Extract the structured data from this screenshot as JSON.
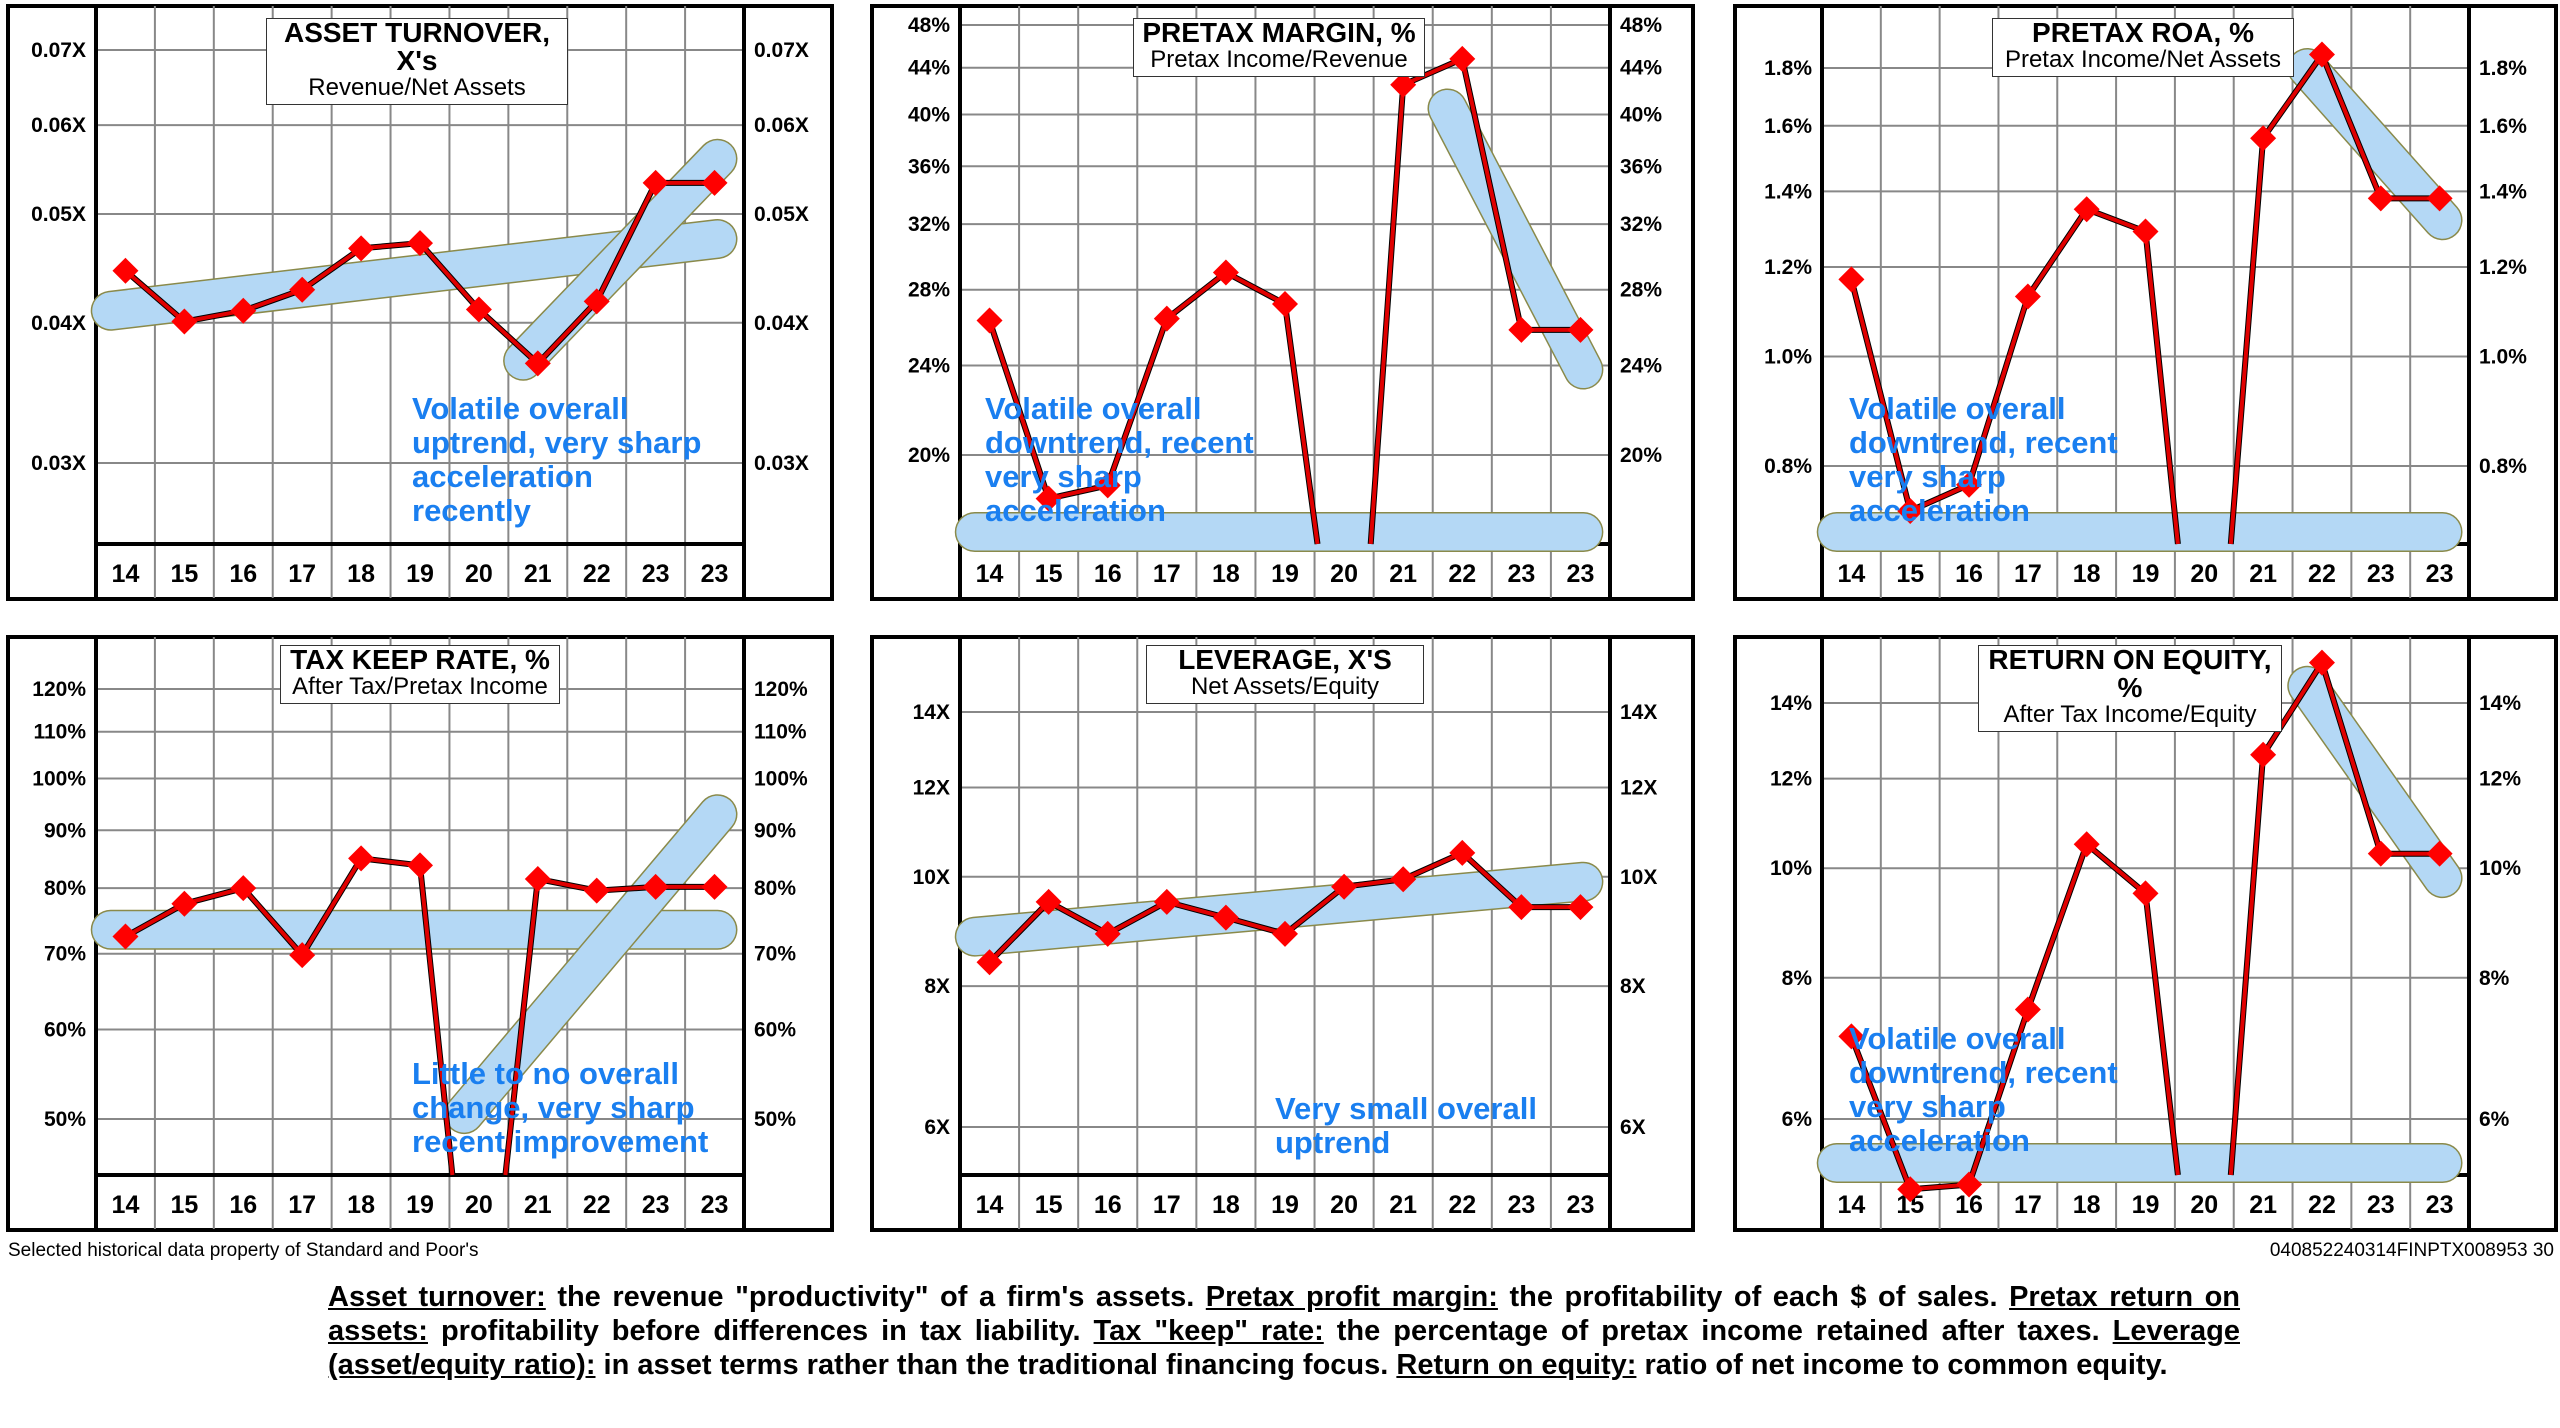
{
  "chart_data": [
    {
      "type": "line",
      "title": "ASSET TURNOVER, X's",
      "subtitle": "Revenue/Net Assets",
      "x": [
        "14",
        "15",
        "16",
        "17",
        "18",
        "19",
        "20",
        "21",
        "22",
        "23",
        "23"
      ],
      "values": [
        0.0445,
        0.0401,
        0.041,
        0.0428,
        0.0466,
        0.0471,
        0.0411,
        0.0368,
        0.0418,
        0.0533,
        0.0533
      ],
      "yticks": [
        "0.07X",
        "0.06X",
        "0.05X",
        "0.04X",
        "0.03X"
      ],
      "ytick_values": [
        0.07,
        0.06,
        0.05,
        0.04,
        0.03
      ],
      "yscale": "log",
      "trend_bands": [
        {
          "x_from": "14",
          "x_to": "23",
          "y_from": 0.041,
          "y_to": 0.0475
        },
        {
          "x_from": "21",
          "x_to": "23",
          "y_from": 0.037,
          "y_to": 0.056
        }
      ],
      "annotation": "Volatile overall\nuptrend, very sharp\nacceleration\nrecently"
    },
    {
      "type": "line",
      "title": "PRETAX MARGIN, %",
      "subtitle": "Pretax Income/Revenue",
      "x": [
        "14",
        "15",
        "16",
        "17",
        "18",
        "19",
        "20",
        "21",
        "22",
        "23",
        "23"
      ],
      "values": [
        26.3,
        18.3,
        18.8,
        26.4,
        29.0,
        27.2,
        null,
        42.5,
        44.8,
        25.8,
        25.8
      ],
      "offscale_below": [
        "20"
      ],
      "yticks": [
        "48%",
        "44%",
        "40%",
        "36%",
        "32%",
        "28%",
        "24%",
        "20%"
      ],
      "ytick_values": [
        48,
        44,
        40,
        36,
        32,
        28,
        24,
        20
      ],
      "yscale": "log",
      "trend_bands": [
        {
          "x_from": "14",
          "x_to": "23",
          "y_from": "bottom",
          "y_to": "bottom"
        },
        {
          "x_from": "22",
          "x_to": "23",
          "y_from": 40.5,
          "y_to": 23.8
        }
      ],
      "annotation": "Volatile overall\ndowntrend, recent\nvery sharp\nacceleration"
    },
    {
      "type": "line",
      "title": "PRETAX ROA, %",
      "subtitle": "Pretax Income/Net Assets",
      "x": [
        "14",
        "15",
        "16",
        "17",
        "18",
        "19",
        "20",
        "21",
        "22",
        "23",
        "23"
      ],
      "values": [
        1.17,
        0.73,
        0.77,
        1.13,
        1.35,
        1.29,
        null,
        1.56,
        1.85,
        1.38,
        1.38
      ],
      "offscale_below": [
        "20"
      ],
      "yticks": [
        "1.8%",
        "1.6%",
        "1.4%",
        "1.2%",
        "1.0%",
        "0.8%"
      ],
      "ytick_values": [
        1.8,
        1.6,
        1.4,
        1.2,
        1.0,
        0.8
      ],
      "yscale": "log",
      "trend_bands": [
        {
          "x_from": "14",
          "x_to": "23",
          "y_from": "bottom",
          "y_to": "bottom"
        },
        {
          "x_from": "22",
          "x_to": "23",
          "y_from": 1.8,
          "y_to": 1.32
        }
      ],
      "annotation": "Volatile overall\ndowntrend, recent\nvery sharp\nacceleration"
    },
    {
      "type": "line",
      "title": "TAX KEEP RATE, %",
      "subtitle": "After Tax/Pretax Income",
      "x": [
        "14",
        "15",
        "16",
        "17",
        "18",
        "19",
        "20",
        "21",
        "22",
        "23",
        "23"
      ],
      "values": [
        72.5,
        77.5,
        80.0,
        69.8,
        85.0,
        83.8,
        null,
        81.5,
        79.6,
        80.2,
        80.2
      ],
      "offscale_below": [
        "20"
      ],
      "yticks": [
        "120%",
        "110%",
        "100%",
        "90%",
        "80%",
        "70%",
        "60%",
        "50%"
      ],
      "ytick_values": [
        120,
        110,
        100,
        90,
        80,
        70,
        60,
        50
      ],
      "yscale": "log",
      "trend_bands": [
        {
          "x_from": "14",
          "x_to": "23",
          "y_from": 73.5,
          "y_to": 73.5
        },
        {
          "x_from": "20",
          "x_to": "23",
          "y_from": 50.5,
          "y_to": 93
        }
      ],
      "annotation": "Little to no overall\nchange, very sharp\nrecent improvement"
    },
    {
      "type": "line",
      "title": "LEVERAGE, X'S",
      "subtitle": "Net Assets/Equity",
      "x": [
        "14",
        "15",
        "16",
        "17",
        "18",
        "19",
        "20",
        "21",
        "22",
        "23",
        "23"
      ],
      "values": [
        8.4,
        9.5,
        8.9,
        9.5,
        9.2,
        8.9,
        9.8,
        9.95,
        10.5,
        9.4,
        9.4
      ],
      "yticks": [
        "14X",
        "12X",
        "10X",
        "8X",
        "6X"
      ],
      "ytick_values": [
        14,
        12,
        10,
        8,
        6
      ],
      "yscale": "log",
      "trend_bands": [
        {
          "x_from": "14",
          "x_to": "23",
          "y_from": 8.85,
          "y_to": 9.9
        }
      ],
      "annotation": "Very small overall\nuptrend"
    },
    {
      "type": "line",
      "title": "RETURN ON EQUITY, %",
      "subtitle": "After Tax Income/Equity",
      "x": [
        "14",
        "15",
        "16",
        "17",
        "18",
        "19",
        "20",
        "21",
        "22",
        "23",
        "23"
      ],
      "values": [
        7.1,
        5.2,
        5.25,
        7.5,
        10.5,
        9.5,
        null,
        12.6,
        15.2,
        10.3,
        10.3
      ],
      "offscale_below": [
        "20"
      ],
      "yticks": [
        "14%",
        "12%",
        "10%",
        "8%",
        "6%"
      ],
      "ytick_values": [
        14,
        12,
        10,
        8,
        6
      ],
      "yscale": "log",
      "trend_bands": [
        {
          "x_from": "14",
          "x_to": "23",
          "y_from": "bottom",
          "y_to": "bottom"
        },
        {
          "x_from": "22",
          "x_to": "23",
          "y_from": 14.5,
          "y_to": 9.8
        }
      ],
      "annotation": "Volatile overall\ndowntrend, recent\nvery sharp\nacceleration"
    }
  ],
  "colors": {
    "line": "#e00000",
    "marker": "#ff0000",
    "band": "#b4d8f5",
    "band_outline": "#8a8a4a",
    "annotation": "#1a7ff0",
    "grid": "#888888"
  },
  "footer": {
    "source": "Selected historical data property of Standard and Poor's",
    "code": "040852240314FINPTX008953  30"
  },
  "notes": [
    {
      "term": "Asset turnover:",
      "text": " the revenue \"productivity\" of a firm's assets. "
    },
    {
      "term": "Pretax profit margin:",
      "text": " the profitability of each $ of sales. "
    },
    {
      "term": "Pretax return on assets:",
      "text": " profitability before differences in tax liability. "
    },
    {
      "term": "Tax \"keep\" rate:",
      "text": " the percentage of pretax income retained after taxes. "
    },
    {
      "term": "Leverage (asset/equity ratio):",
      "text": " in asset terms rather than the traditional financing focus. "
    },
    {
      "term": "Return on equity:",
      "text": " ratio of net income to common equity."
    }
  ]
}
